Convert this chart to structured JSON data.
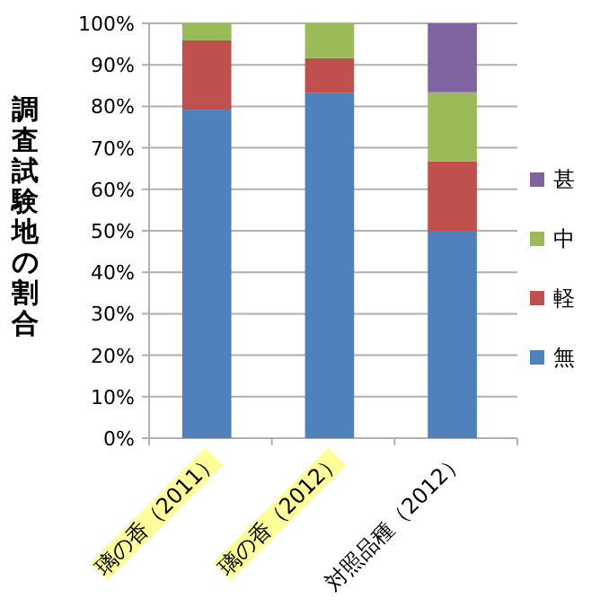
{
  "chart_data": {
    "type": "bar",
    "stacked": true,
    "ylabel": "調査試験地の割合",
    "categories": [
      "璃の香（2011）",
      "璃の香（2012）",
      "対照品種（2012）"
    ],
    "series": [
      {
        "name": "無",
        "color": "#4f81bd",
        "values": [
          79.2,
          83.3,
          50.0
        ]
      },
      {
        "name": "軽",
        "color": "#c0504d",
        "values": [
          16.7,
          8.3,
          16.7
        ]
      },
      {
        "name": "中",
        "color": "#9bbb59",
        "values": [
          4.1,
          8.4,
          16.7
        ]
      },
      {
        "name": "甚",
        "color": "#8064a2",
        "values": [
          null,
          null,
          16.6
        ]
      }
    ],
    "ylim": [
      0,
      100
    ],
    "yticks": [
      {
        "value": 0,
        "label": "0%"
      },
      {
        "value": 10,
        "label": "10%"
      },
      {
        "value": 20,
        "label": "20%"
      },
      {
        "value": 30,
        "label": "30%"
      },
      {
        "value": 40,
        "label": "40%"
      },
      {
        "value": 50,
        "label": "50%"
      },
      {
        "value": 60,
        "label": "60%"
      },
      {
        "value": 70,
        "label": "70%"
      },
      {
        "value": 80,
        "label": "80%"
      },
      {
        "value": 90,
        "label": "90%"
      },
      {
        "value": 100,
        "label": "100%"
      }
    ],
    "grid": "y",
    "legend": "right"
  }
}
